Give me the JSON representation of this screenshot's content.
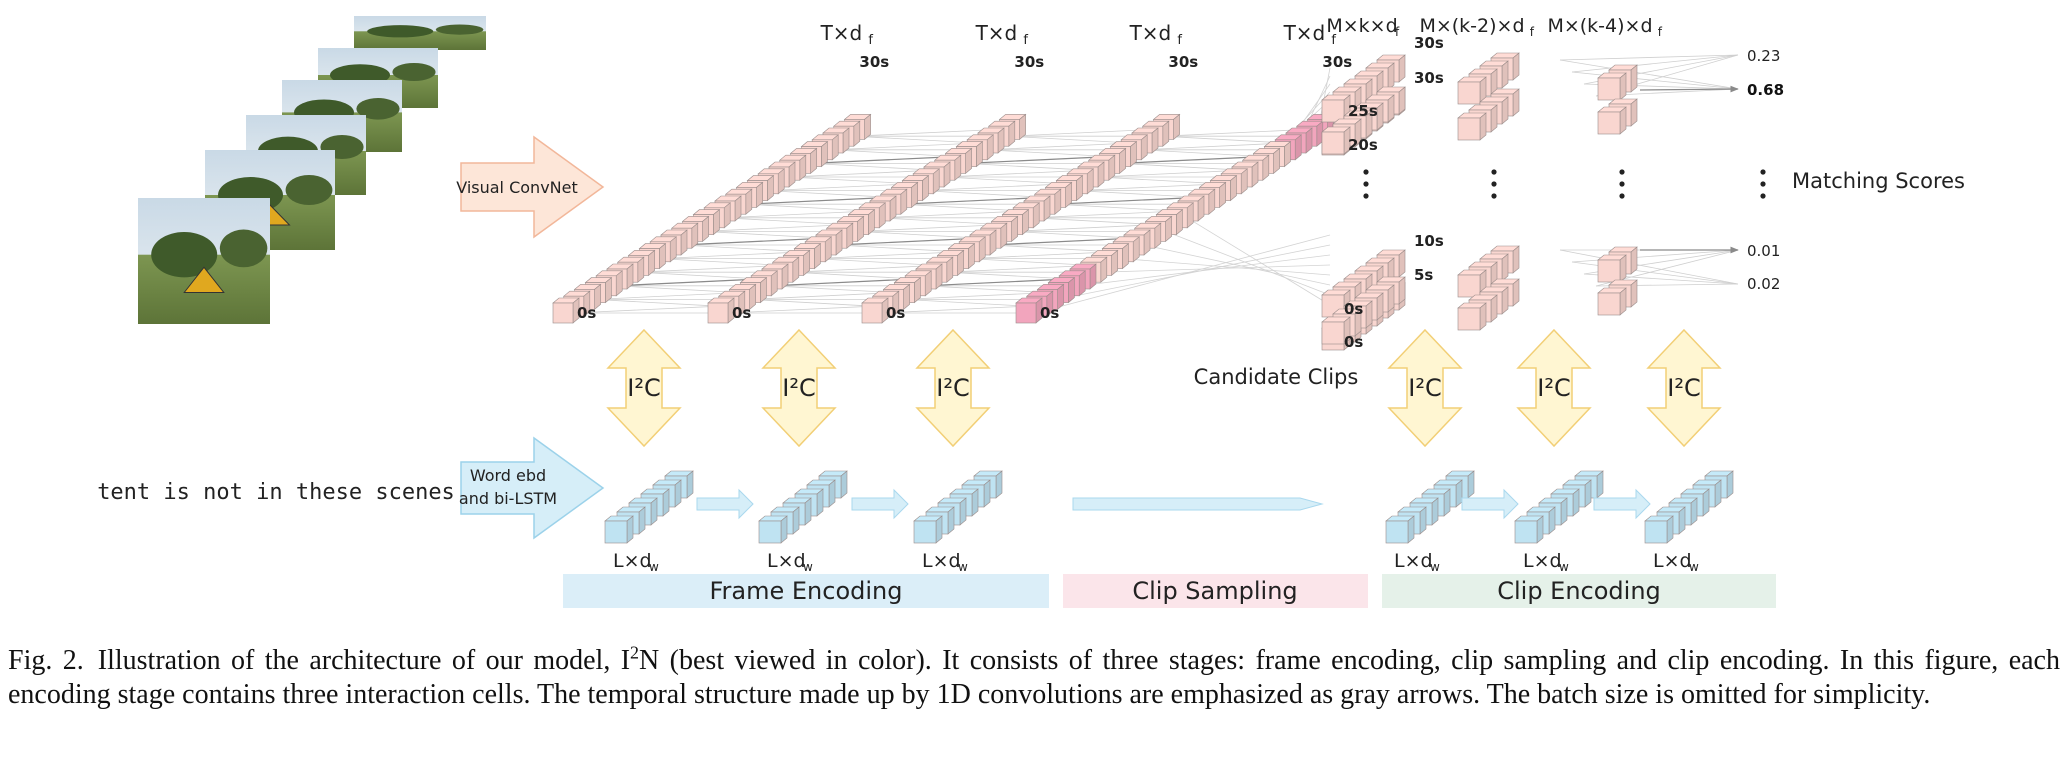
{
  "figure": {
    "input_sentence": "tent is not in these scenes",
    "visual_convnet_label": "Visual ConvNet",
    "word_encoder_label": [
      "Word ebd",
      "and bi-LSTM"
    ],
    "frame_dim_label": "T×d",
    "frame_dim_sub": "f",
    "clip_dim_labels": [
      {
        "text": "M×k×d",
        "sub": "f"
      },
      {
        "text": "M×(k-2)×d",
        "sub": "f"
      },
      {
        "text": "M×(k-4)×d",
        "sub": "f"
      }
    ],
    "time_start": "0s",
    "time_end": "30s",
    "clip_time_labels": [
      "30s",
      "30s",
      "25s",
      "20s",
      "10s",
      "5s",
      "0s",
      "0s"
    ],
    "word_dim_label": "L×d",
    "word_dim_sub": "w",
    "interaction_label": "I²C",
    "candidate_clips_label": "Candidate Clips",
    "matching_scores_label": "Matching Scores",
    "scores": [
      "0.23",
      "0.68",
      "0.01",
      "0.02"
    ],
    "stages": [
      "Frame Encoding",
      "Clip Sampling",
      "Clip Encoding"
    ],
    "colors": {
      "frame_cube": "#f9d6d0",
      "frame_highlight": "#f2a5bd",
      "word_cube": "#bfe3f2",
      "interaction": "#fff6d2",
      "frame_stage": "#dbeef8",
      "clip_sampling_stage": "#fbe5ea",
      "clip_encoding_stage": "#e5f1e9"
    }
  },
  "caption": {
    "label": "Fig. 2.",
    "model_name": "I",
    "model_sup": "2",
    "model_suffix": "N",
    "pre": "Illustration of the architecture of our model, ",
    "post": " (best viewed in color). It consists of three stages: frame encoding, clip sampling and clip encoding. In this figure, each encoding stage contains three interaction cells. The temporal structure made up by 1D convolutions are emphasized as gray arrows. The batch size is omitted for simplicity."
  }
}
